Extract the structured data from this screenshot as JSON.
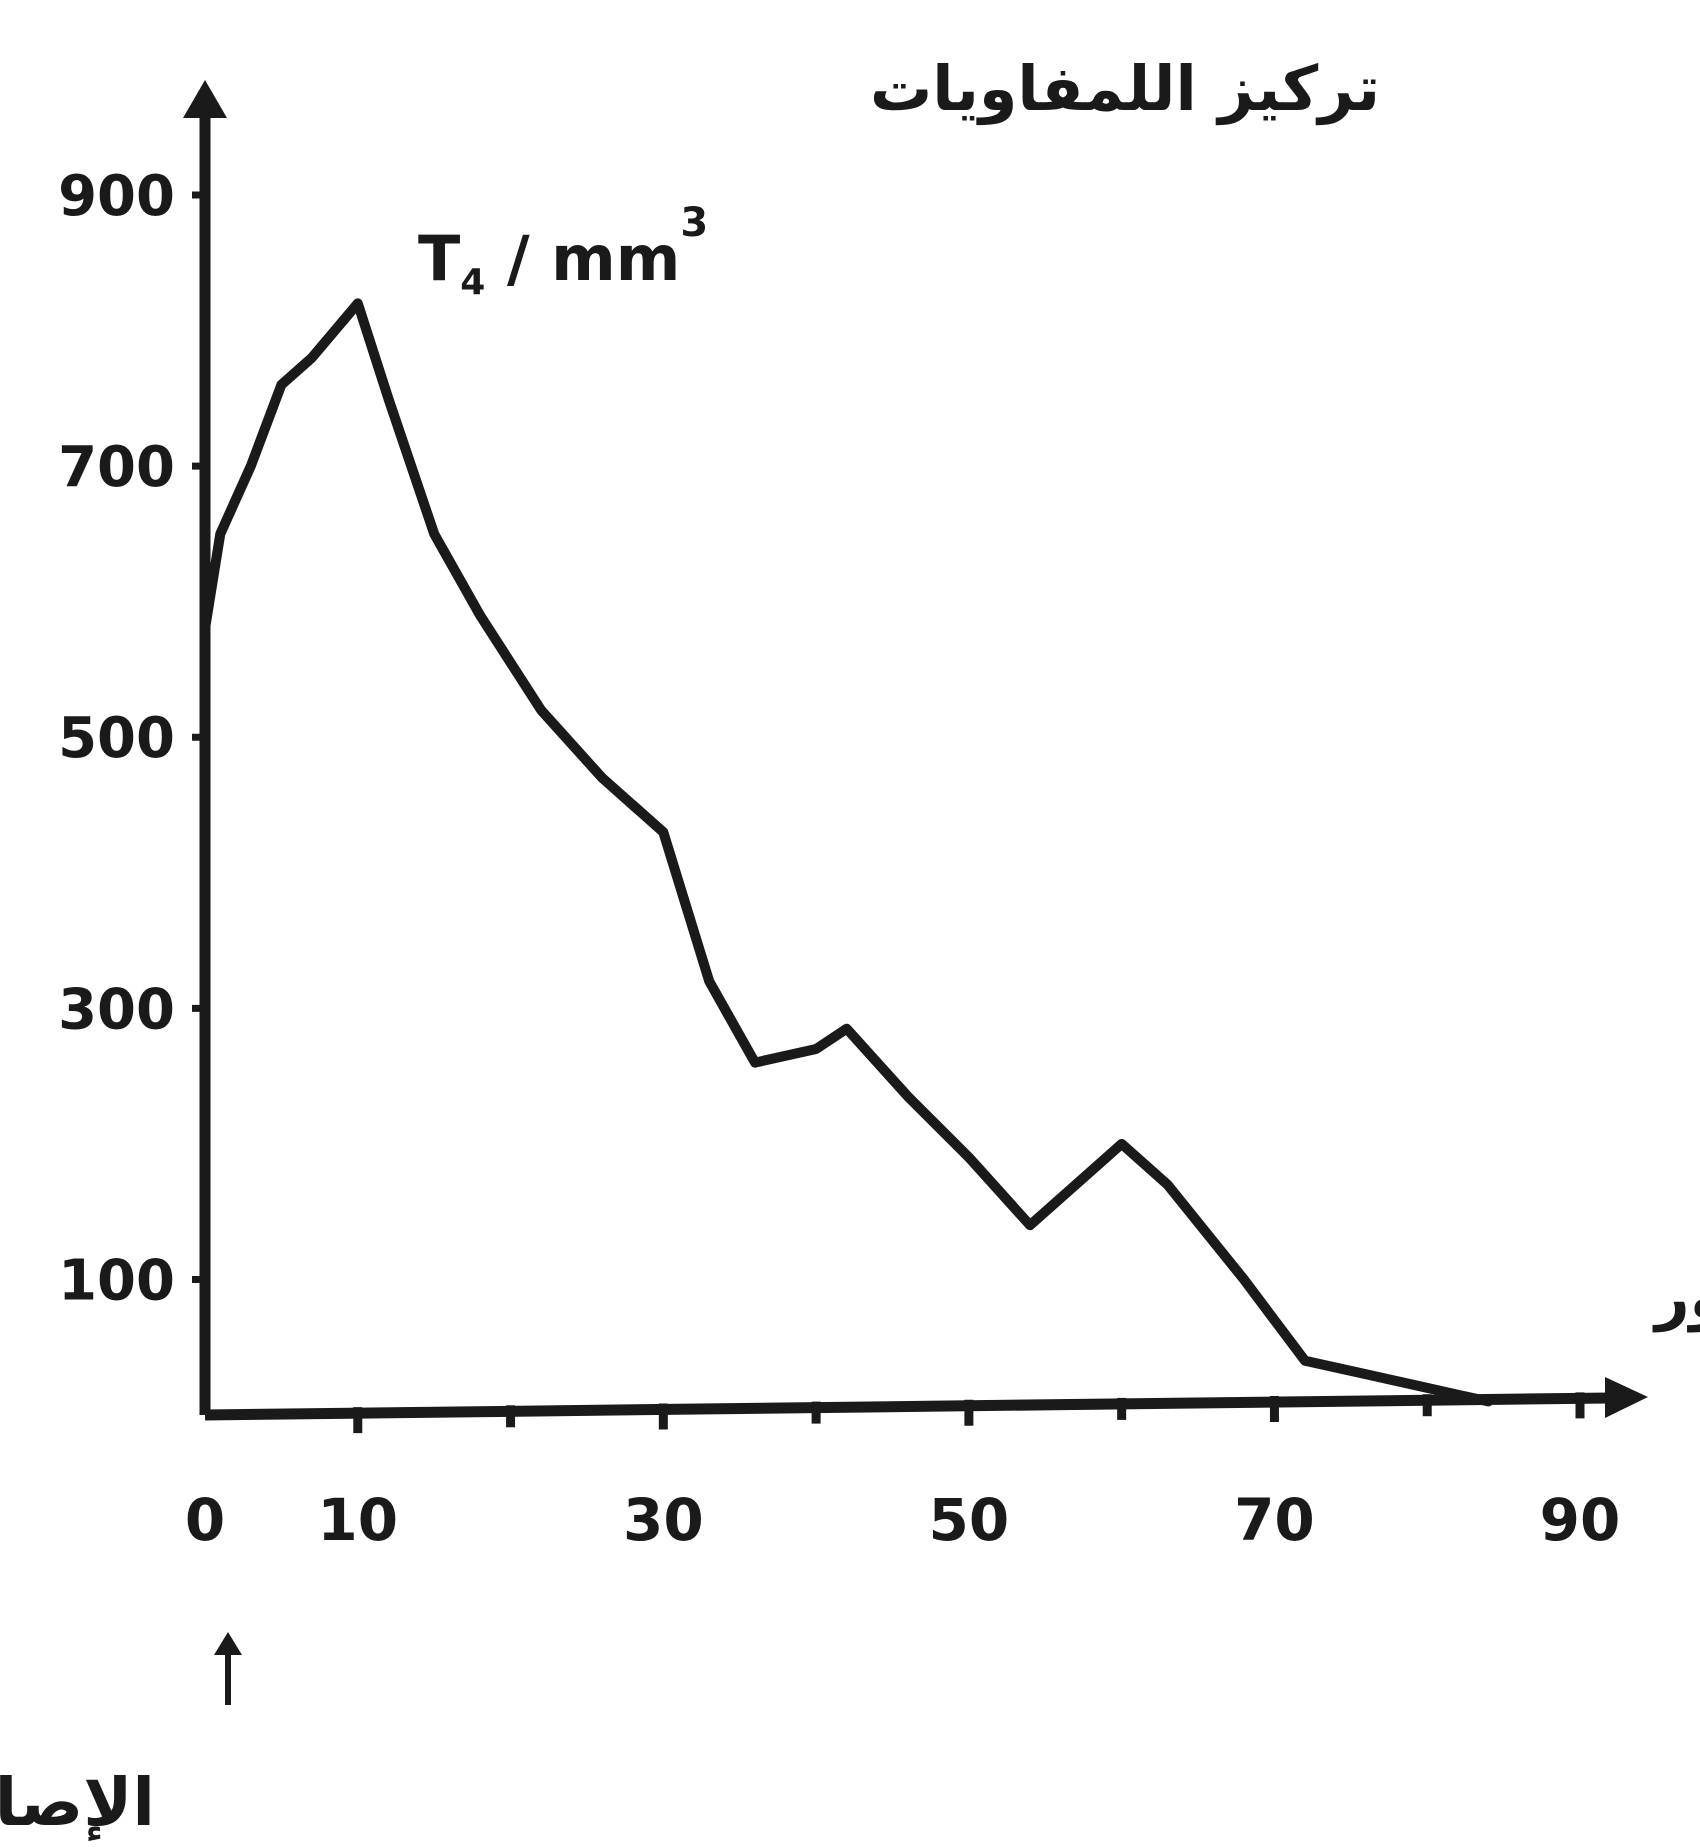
{
  "chart_data": {
    "type": "line",
    "ylabel": "تركيز اللمفاويات",
    "ylabel_unit_base": "T",
    "ylabel_unit_sub": "4",
    "ylabel_unit_rest": " / mm",
    "ylabel_unit_sup": "3",
    "xlabel": "شهور",
    "annotation": "الإصابة ب VIH",
    "x_ticks": [
      0,
      10,
      30,
      50,
      70,
      90
    ],
    "y_ticks": [
      100,
      300,
      500,
      700,
      900
    ],
    "xlim": [
      0,
      90
    ],
    "ylim": [
      0,
      950
    ],
    "grid": false,
    "series": [
      {
        "x": [
          0,
          1,
          3,
          5,
          7,
          10,
          12,
          15,
          18,
          22,
          26,
          30,
          33,
          36,
          40,
          42,
          46,
          50,
          54,
          60,
          63,
          68,
          72,
          76,
          80,
          82,
          84
        ],
        "y": [
          580,
          650,
          700,
          760,
          780,
          820,
          750,
          650,
          590,
          520,
          470,
          430,
          320,
          260,
          270,
          285,
          235,
          190,
          140,
          200,
          170,
          100,
          40,
          30,
          20,
          15,
          10
        ]
      }
    ]
  }
}
